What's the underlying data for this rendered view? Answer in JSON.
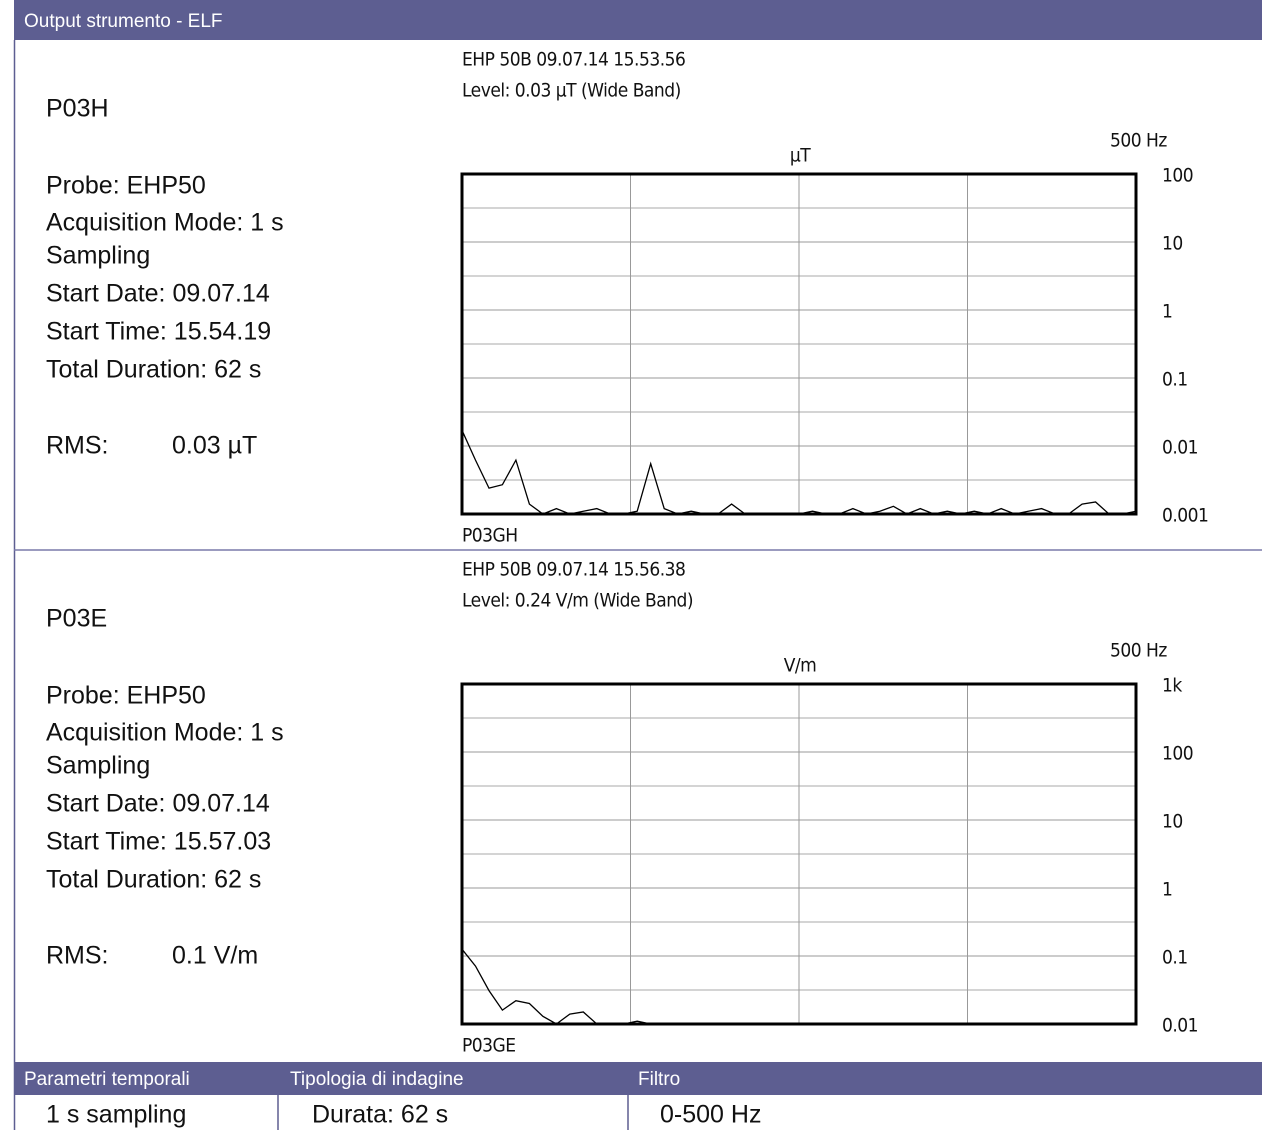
{
  "header": {
    "title": "Output strumento - ELF"
  },
  "panels": [
    {
      "name": "P03H",
      "info": [
        "Probe: EHP50",
        "Acquisition Mode: 1 s",
        "Sampling",
        "Start Date: 09.07.14",
        "Start Time: 15.54.19",
        "Total Duration: 62 s"
      ],
      "rms_label": "RMS:",
      "rms_value": "0.03 µT",
      "chart": {
        "type": "line",
        "title_lines": [
          "EHP 50B  09.07.14  15.53.56",
          "Level: 0.03 µT  (Wide Band)"
        ],
        "y_label": "µT",
        "x_label": "500 Hz",
        "log_y": true,
        "xlim": [
          0,
          500
        ],
        "ylim": [
          0.001,
          100
        ],
        "yticks": [
          100,
          10,
          1,
          0.1,
          0.01,
          0.001
        ],
        "x": [
          0,
          10,
          20,
          30,
          40,
          50,
          60,
          70,
          80,
          90,
          100,
          110,
          120,
          130,
          140,
          150,
          160,
          170,
          180,
          190,
          200,
          210,
          220,
          230,
          240,
          250,
          260,
          270,
          280,
          290,
          300,
          310,
          320,
          330,
          340,
          350,
          360,
          370,
          380,
          390,
          400,
          410,
          420,
          430,
          440,
          450,
          460,
          470,
          480,
          490,
          500
        ],
        "series": [
          {
            "name": "P03GH",
            "color": "#000000",
            "values": [
              0.017,
              0.0062,
              0.0024,
              0.0027,
              0.0062,
              0.0014,
              0.001,
              0.0012,
              0.001,
              0.0011,
              0.0012,
              0.001,
              0.001,
              0.0011,
              0.0055,
              0.0012,
              0.001,
              0.0011,
              0.001,
              0.001,
              0.0014,
              0.001,
              0.001,
              0.001,
              0.001,
              0.001,
              0.0011,
              0.001,
              0.001,
              0.0012,
              0.001,
              0.0011,
              0.0013,
              0.001,
              0.0012,
              0.001,
              0.0011,
              0.001,
              0.0011,
              0.001,
              0.0012,
              0.001,
              0.0011,
              0.0012,
              0.001,
              0.001,
              0.0014,
              0.0015,
              0.001,
              0.001,
              0.0011
            ]
          }
        ]
      }
    },
    {
      "name": "P03E",
      "info": [
        "Probe: EHP50",
        "Acquisition Mode: 1 s",
        "Sampling",
        "Start Date: 09.07.14",
        "Start Time: 15.57.03",
        "Total Duration: 62 s"
      ],
      "rms_label": "RMS:",
      "rms_value": "0.1 V/m",
      "chart": {
        "type": "line",
        "title_lines": [
          "EHP 50B  09.07.14  15.56.38",
          "Level: 0.24 V/m  (Wide Band)"
        ],
        "y_label": "V/m",
        "x_label": "500 Hz",
        "log_y": true,
        "xlim": [
          0,
          500
        ],
        "ylim": [
          0.01,
          1000
        ],
        "yticks": [
          {
            "value": 1000,
            "label": "1k"
          },
          100,
          10,
          1,
          0.1,
          0.01
        ],
        "x": [
          0,
          10,
          20,
          30,
          40,
          50,
          60,
          70,
          80,
          90,
          100,
          110,
          120,
          130,
          140,
          150,
          160,
          170,
          180,
          190,
          200,
          210,
          220,
          230,
          240,
          250,
          260,
          270,
          280,
          290,
          300,
          310,
          320,
          330,
          340,
          350,
          360,
          370,
          380,
          390,
          400,
          410,
          420,
          430,
          440,
          450,
          460,
          470,
          480,
          490,
          500
        ],
        "series": [
          {
            "name": "P03GE",
            "color": "#000000",
            "values": [
              0.126,
              0.071,
              0.031,
              0.016,
              0.022,
              0.02,
              0.013,
              0.01,
              0.014,
              0.015,
              0.01,
              0.01,
              0.01,
              0.011,
              0.01,
              0.01,
              0.01,
              0.01,
              0.01,
              0.01,
              0.01,
              0.01,
              0.01,
              0.01,
              0.01,
              0.01,
              0.01,
              0.01,
              0.01,
              0.01,
              0.01,
              0.01,
              0.01,
              0.01,
              0.01,
              0.01,
              0.01,
              0.01,
              0.01,
              0.01,
              0.01,
              0.01,
              0.01,
              0.01,
              0.01,
              0.01,
              0.01,
              0.01,
              0.01,
              0.01,
              0.01
            ]
          }
        ]
      }
    }
  ],
  "footer": {
    "headers": [
      "Parametri temporali",
      "Tipologia di indagine",
      "Filtro"
    ],
    "cells": [
      "1 s sampling",
      "Durata: 62 s",
      "0-500 Hz"
    ]
  }
}
